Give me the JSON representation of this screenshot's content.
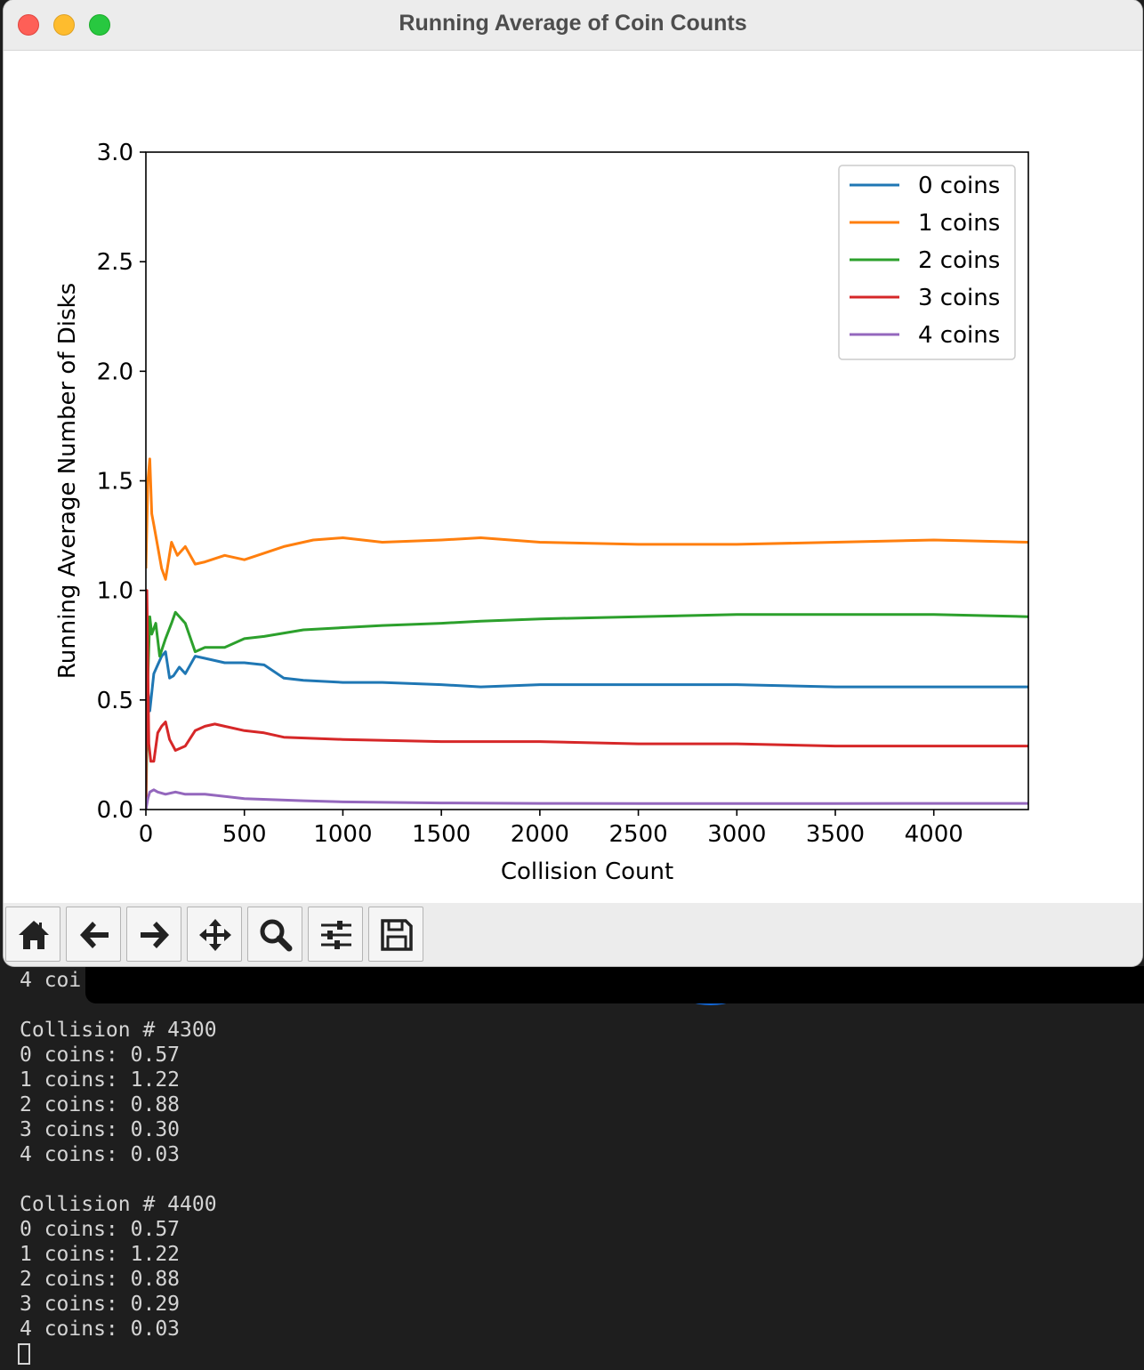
{
  "window": {
    "title": "Running Average of Coin Counts"
  },
  "toolbar": {
    "buttons": [
      {
        "name": "home",
        "icon": "home-icon"
      },
      {
        "name": "back",
        "icon": "arrow-left-icon"
      },
      {
        "name": "forward",
        "icon": "arrow-right-icon"
      },
      {
        "name": "pan",
        "icon": "move-icon"
      },
      {
        "name": "zoom",
        "icon": "magnifier-icon"
      },
      {
        "name": "configure-subplots",
        "icon": "sliders-icon"
      },
      {
        "name": "save",
        "icon": "floppy-disk-icon"
      }
    ]
  },
  "chart_data": {
    "type": "line",
    "xlabel": "Collision Count",
    "ylabel": "Running Average Number of Disks",
    "xlim": [
      0,
      4480
    ],
    "ylim": [
      0,
      3.0
    ],
    "xticks": [
      "0",
      "500",
      "1000",
      "1500",
      "2000",
      "2500",
      "3000",
      "3500",
      "4000"
    ],
    "xtick_values": [
      0,
      500,
      1000,
      1500,
      2000,
      2500,
      3000,
      3500,
      4000
    ],
    "yticks": [
      "0.0",
      "0.5",
      "1.0",
      "1.5",
      "2.0",
      "2.5",
      "3.0"
    ],
    "ytick_values": [
      0,
      0.5,
      1.0,
      1.5,
      2.0,
      2.5,
      3.0
    ],
    "legend_position": "top-right",
    "series": [
      {
        "name": "0 coins",
        "color": "#1f77b4",
        "x": [
          0,
          10,
          20,
          40,
          60,
          80,
          100,
          120,
          140,
          170,
          200,
          250,
          300,
          400,
          500,
          600,
          700,
          800,
          1000,
          1200,
          1500,
          1700,
          2000,
          2500,
          3000,
          3500,
          4000,
          4480
        ],
        "y": [
          0.2,
          0.55,
          0.45,
          0.62,
          0.66,
          0.7,
          0.72,
          0.6,
          0.61,
          0.65,
          0.62,
          0.7,
          0.69,
          0.67,
          0.67,
          0.66,
          0.6,
          0.59,
          0.58,
          0.58,
          0.57,
          0.56,
          0.57,
          0.57,
          0.57,
          0.56,
          0.56,
          0.56
        ]
      },
      {
        "name": "1 coins",
        "color": "#ff7f0e",
        "x": [
          0,
          10,
          20,
          30,
          40,
          60,
          80,
          100,
          130,
          160,
          200,
          250,
          300,
          400,
          500,
          600,
          700,
          850,
          1000,
          1200,
          1500,
          1700,
          2000,
          2500,
          3000,
          3500,
          4000,
          4480
        ],
        "y": [
          1.1,
          1.5,
          1.6,
          1.35,
          1.3,
          1.2,
          1.1,
          1.05,
          1.22,
          1.16,
          1.2,
          1.12,
          1.13,
          1.16,
          1.14,
          1.17,
          1.2,
          1.23,
          1.24,
          1.22,
          1.23,
          1.24,
          1.22,
          1.21,
          1.21,
          1.22,
          1.23,
          1.22
        ]
      },
      {
        "name": "2 coins",
        "color": "#2ca02c",
        "x": [
          0,
          10,
          20,
          30,
          50,
          70,
          100,
          130,
          150,
          200,
          250,
          300,
          400,
          500,
          600,
          800,
          1000,
          1200,
          1500,
          1700,
          2000,
          2500,
          3000,
          3500,
          4000,
          4480
        ],
        "y": [
          0.0,
          0.6,
          0.88,
          0.8,
          0.85,
          0.7,
          0.78,
          0.85,
          0.9,
          0.85,
          0.72,
          0.74,
          0.74,
          0.78,
          0.79,
          0.82,
          0.83,
          0.84,
          0.85,
          0.86,
          0.87,
          0.88,
          0.89,
          0.89,
          0.89,
          0.88
        ]
      },
      {
        "name": "3 coins",
        "color": "#d62728",
        "x": [
          0,
          5,
          15,
          25,
          40,
          60,
          80,
          100,
          120,
          150,
          200,
          250,
          300,
          350,
          400,
          500,
          600,
          700,
          1000,
          1500,
          2000,
          2500,
          3000,
          3500,
          4000,
          4480
        ],
        "y": [
          0.0,
          1.0,
          0.3,
          0.22,
          0.22,
          0.35,
          0.38,
          0.4,
          0.32,
          0.27,
          0.29,
          0.36,
          0.38,
          0.39,
          0.38,
          0.36,
          0.35,
          0.33,
          0.32,
          0.31,
          0.31,
          0.3,
          0.3,
          0.29,
          0.29,
          0.29
        ]
      },
      {
        "name": "4 coins",
        "color": "#9467bd",
        "x": [
          0,
          10,
          20,
          40,
          60,
          100,
          150,
          200,
          300,
          500,
          800,
          1000,
          1500,
          2000,
          2500,
          3000,
          3500,
          4000,
          4480
        ],
        "y": [
          0.0,
          0.05,
          0.08,
          0.09,
          0.08,
          0.07,
          0.08,
          0.07,
          0.07,
          0.05,
          0.04,
          0.035,
          0.03,
          0.028,
          0.027,
          0.027,
          0.027,
          0.028,
          0.028
        ]
      }
    ]
  },
  "terminal": {
    "lines": [
      "4 coi",
      "",
      "Collision # 4300",
      "0 coins: 0.57",
      "1 coins: 1.22",
      "2 coins: 0.88",
      "3 coins: 0.30",
      "4 coins: 0.03",
      "",
      "Collision # 4400",
      "0 coins: 0.57",
      "1 coins: 1.22",
      "2 coins: 0.88",
      "3 coins: 0.29",
      "4 coins: 0.03"
    ]
  }
}
